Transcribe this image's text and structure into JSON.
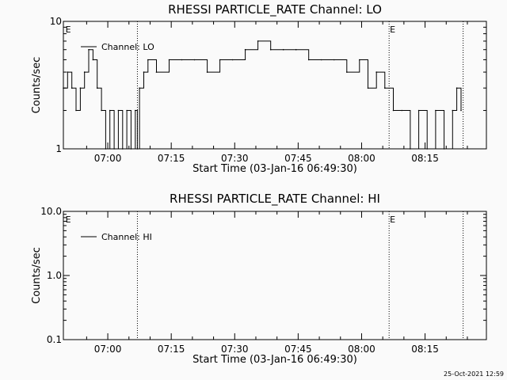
{
  "chart_data": [
    {
      "type": "line",
      "title": "RHESSI PARTICLE_RATE Channel: LO",
      "xlabel": "Start Time (03-Jan-16 06:49:30)",
      "ylabel": "Counts/sec",
      "y_scale": "log",
      "ylim": [
        1,
        10
      ],
      "y_ticks": [
        "10",
        "1"
      ],
      "x_ticks": [
        "07:00",
        "07:15",
        "07:30",
        "07:45",
        "08:00",
        "08:15"
      ],
      "x_ticks_min": [
        10.5,
        25.5,
        40.5,
        55.5,
        70.5,
        85.5
      ],
      "xlim_min": [
        0,
        100
      ],
      "legend": "Channel: LO",
      "legend_position": "top-left",
      "event_markers": [
        {
          "label": "E",
          "x_min": 0.3
        },
        {
          "label": "",
          "x_min": 17.5
        },
        {
          "label": "E",
          "x_min": 77.0
        },
        {
          "label": "",
          "x_min": 94.5
        }
      ],
      "series": [
        {
          "name": "Channel: LO",
          "x_min": [
            0,
            1,
            2,
            3,
            4,
            5,
            6,
            7,
            8,
            9,
            10,
            11,
            12,
            13,
            14,
            15,
            16,
            17,
            17.5,
            18,
            19,
            20,
            22,
            25,
            28,
            31,
            34,
            37,
            40,
            43,
            46,
            49,
            52,
            55,
            58,
            61,
            64,
            67,
            70,
            72,
            74,
            76,
            78,
            80,
            82,
            84,
            86,
            88,
            90,
            92,
            93,
            94
          ],
          "values": [
            3,
            4,
            3,
            2,
            3,
            4,
            6,
            5,
            3,
            2,
            1,
            2,
            1,
            2,
            1,
            2,
            1,
            2,
            1,
            3,
            4,
            5,
            4,
            5,
            5,
            5,
            4,
            5,
            5,
            6,
            7,
            6,
            6,
            6,
            5,
            5,
            5,
            4,
            5,
            3,
            4,
            3,
            2,
            2,
            1,
            2,
            1,
            2,
            1,
            2,
            3,
            2
          ]
        }
      ]
    },
    {
      "type": "line",
      "title": "RHESSI PARTICLE_RATE Channel: HI",
      "xlabel": "Start Time (03-Jan-16 06:49:30)",
      "ylabel": "Counts/sec",
      "y_scale": "log",
      "ylim": [
        0.1,
        10
      ],
      "y_ticks": [
        "10.0",
        "1.0",
        "0.1"
      ],
      "x_ticks": [
        "07:00",
        "07:15",
        "07:30",
        "07:45",
        "08:00",
        "08:15"
      ],
      "x_ticks_min": [
        10.5,
        25.5,
        40.5,
        55.5,
        70.5,
        85.5
      ],
      "xlim_min": [
        0,
        100
      ],
      "legend": "Channel: HI",
      "legend_position": "top-left",
      "event_markers": [
        {
          "label": "E",
          "x_min": 0.3
        },
        {
          "label": "",
          "x_min": 17.5
        },
        {
          "label": "E",
          "x_min": 77.0
        },
        {
          "label": "",
          "x_min": 94.5
        }
      ],
      "series": [
        {
          "name": "Channel: HI",
          "x_min": [],
          "values": []
        }
      ]
    }
  ],
  "footer": {
    "timestamp": "25-Oct-2021 12:59"
  }
}
